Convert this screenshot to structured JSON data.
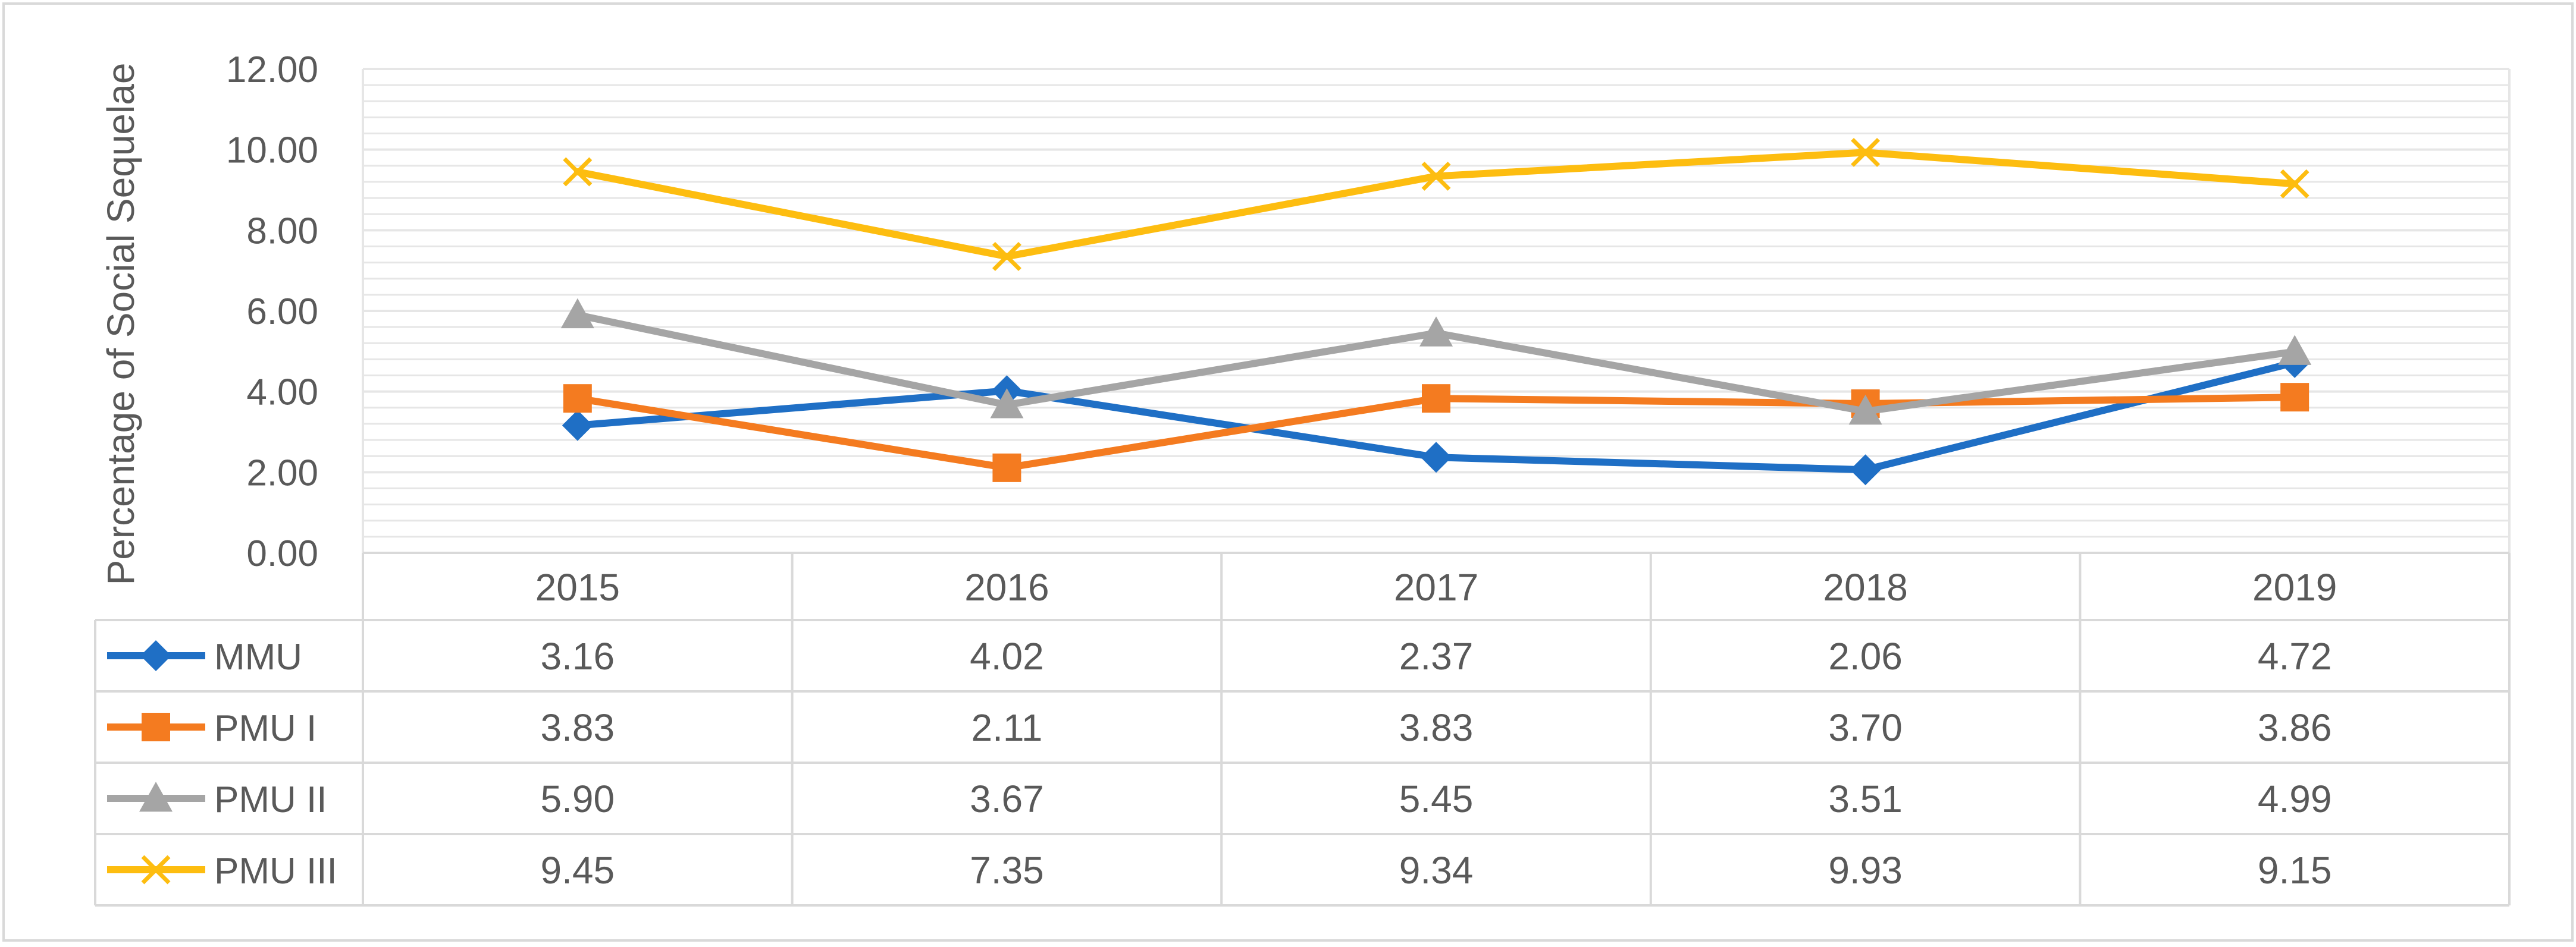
{
  "colors": {
    "MMU": "#1F6FC5",
    "PMU I": "#F47B20",
    "PMU II": "#A5A5A5",
    "PMU III": "#FDBD10",
    "grid": "#E6E6E6",
    "table_border": "#D9D9D9",
    "text": "#595959"
  },
  "chart_data": {
    "type": "line",
    "title": "",
    "xlabel": "",
    "ylabel": "Percentage of Social Sequelae",
    "categories": [
      "2015",
      "2016",
      "2017",
      "2018",
      "2019"
    ],
    "ylim": [
      0,
      12
    ],
    "y_major_step": 2,
    "y_minor_step": 0.4,
    "y_tick_labels": [
      "0.00",
      "2.00",
      "4.00",
      "6.00",
      "8.00",
      "10.00",
      "12.00"
    ],
    "grid": true,
    "legend": "data-table-rows",
    "series": [
      {
        "name": "MMU",
        "marker": "diamond",
        "values": [
          3.16,
          4.02,
          2.37,
          2.06,
          4.72
        ],
        "labels": [
          "3.16",
          "4.02",
          "2.37",
          "2.06",
          "4.72"
        ]
      },
      {
        "name": "PMU I",
        "marker": "square",
        "values": [
          3.83,
          2.11,
          3.83,
          3.7,
          3.86
        ],
        "labels": [
          "3.83",
          "2.11",
          "3.83",
          "3.70",
          "3.86"
        ]
      },
      {
        "name": "PMU II",
        "marker": "triangle",
        "values": [
          5.9,
          3.67,
          5.45,
          3.51,
          4.99
        ],
        "labels": [
          "5.90",
          "3.67",
          "5.45",
          "3.51",
          "4.99"
        ]
      },
      {
        "name": "PMU III",
        "marker": "x",
        "values": [
          9.45,
          7.35,
          9.34,
          9.93,
          9.15
        ],
        "labels": [
          "9.45",
          "7.35",
          "9.34",
          "9.93",
          "9.15"
        ]
      }
    ]
  }
}
